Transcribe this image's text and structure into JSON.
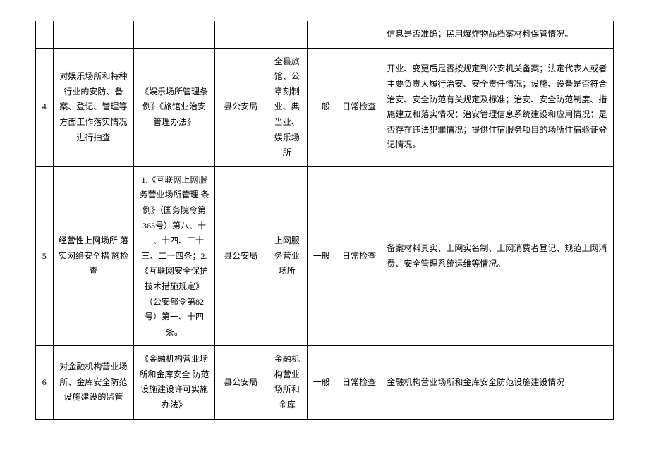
{
  "rows": [
    {
      "num": "",
      "c1": "",
      "c2": "",
      "c3": "",
      "c4": "",
      "c5": "",
      "c6": "",
      "c7": "信息是否准确；民用爆炸物品档案材料保管情况。"
    },
    {
      "num": "4",
      "c1": "对娱乐场所和特种行业的安防、备案、登记、管理等方面工作落实情况进行抽查",
      "c2": "《娱乐场所管理条例》《旅馆业治安管理办法》",
      "c3": "县公安局",
      "c4": "全县旅馆、公章刻制业、典当业、娱乐场所",
      "c5": "一般",
      "c6": "日常检查",
      "c7": "开业、变更后是否按规定到公安机关备案；法定代表人或者主要负责人履行治安、安全责任情况；设施、设备是否符合治安、安全防范有关规定及标准；治安、安全防范制度、措施建立和落实情况；治安管理信息系统建设和应用情况；是否存在违法犯罪情况；提供住宿服务项目的场所住宿验证登记情况。"
    },
    {
      "num": "5",
      "c1": "经营性上网场所 落实网络安全措 施检查",
      "c2": "1.《互联网上网服务营业场所管理 条例》（国务院令第363号）第八、十一、十四、二十三、二十四条；2.《互联网安全保护技术措施规定》（公安部令第82号）第一、十四条。",
      "c3": "县公安局",
      "c4": "上网服务营业场所",
      "c5": "一般",
      "c6": "日常检查",
      "c7": "备案材料真实、上网实名制、上网消费者登记、规范上网消费、安全管理系统运维等情况。"
    },
    {
      "num": "6",
      "c1": "对金融机构营业场所、金库安全防范设施建设的监管",
      "c2": "《金融机构营业场所和金库安全 防范设施建设许可实施办法》",
      "c3": "县公安局",
      "c4": "金融机构营业场所和金库",
      "c5": "一般",
      "c6": "日常检查",
      "c7": "金融机构营业场所和金库安全防范设施建设情况"
    }
  ],
  "widths": [
    "3%",
    "14%",
    "14%",
    "9%",
    "7%",
    "5%",
    "8%",
    "40%"
  ]
}
